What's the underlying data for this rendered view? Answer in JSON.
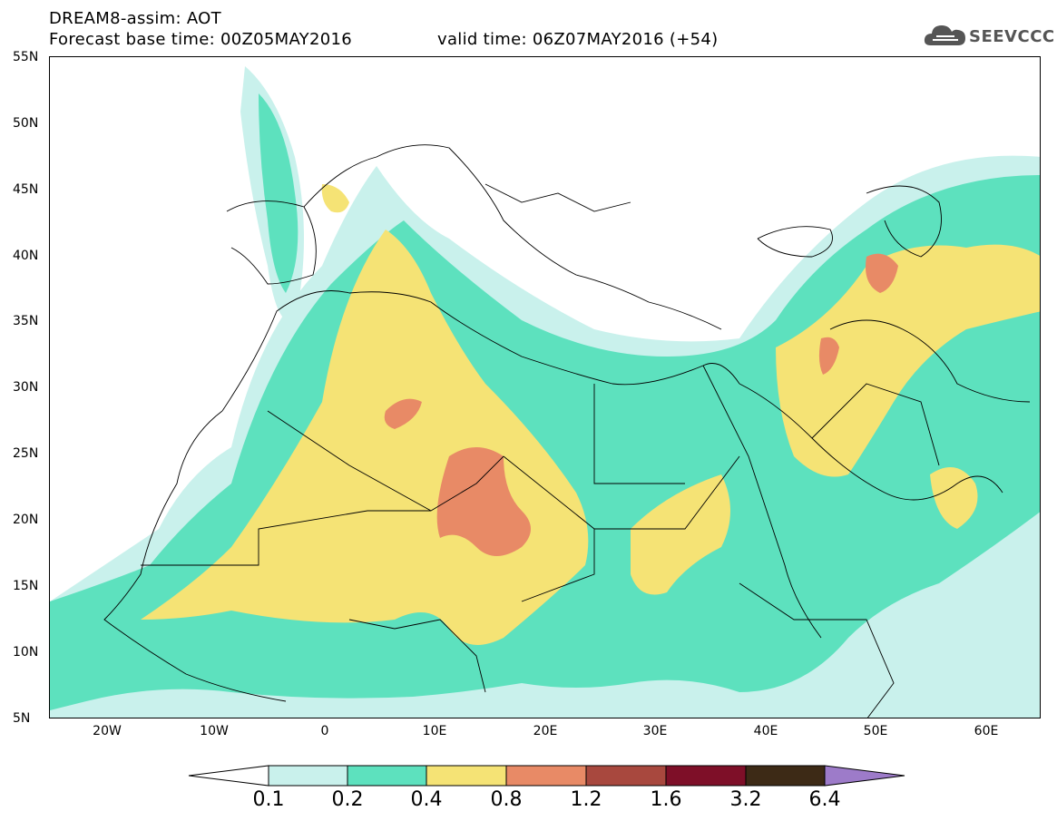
{
  "header": {
    "title": "DREAM8-assim: AOT",
    "base_time": "Forecast base time: 00Z05MAY2016",
    "valid_time": "valid time: 06Z07MAY2016 (+54)"
  },
  "logo": {
    "text": "SEEVCCC",
    "icon": "cloud-icon"
  },
  "axes": {
    "lat_labels": [
      "55N",
      "50N",
      "45N",
      "40N",
      "35N",
      "30N",
      "25N",
      "20N",
      "15N",
      "10N",
      "5N"
    ],
    "lon_labels": [
      "20W",
      "10W",
      "0",
      "10E",
      "20E",
      "30E",
      "40E",
      "50E",
      "60E"
    ],
    "lon_range": [
      -25,
      65
    ],
    "lat_range": [
      5,
      55
    ]
  },
  "colors": {
    "c1": "#c9f1ec",
    "c2": "#5de1be",
    "c3": "#f5e375",
    "c4": "#e88a66",
    "c5": "#a8483e",
    "c6": "#7e0f28",
    "c7": "#3d2a16",
    "c8": "#9d7bc9",
    "border": "#000000"
  },
  "colorbar": {
    "labels": [
      "0.1",
      "0.2",
      "0.4",
      "0.8",
      "1.2",
      "1.6",
      "3.2",
      "6.4"
    ]
  }
}
